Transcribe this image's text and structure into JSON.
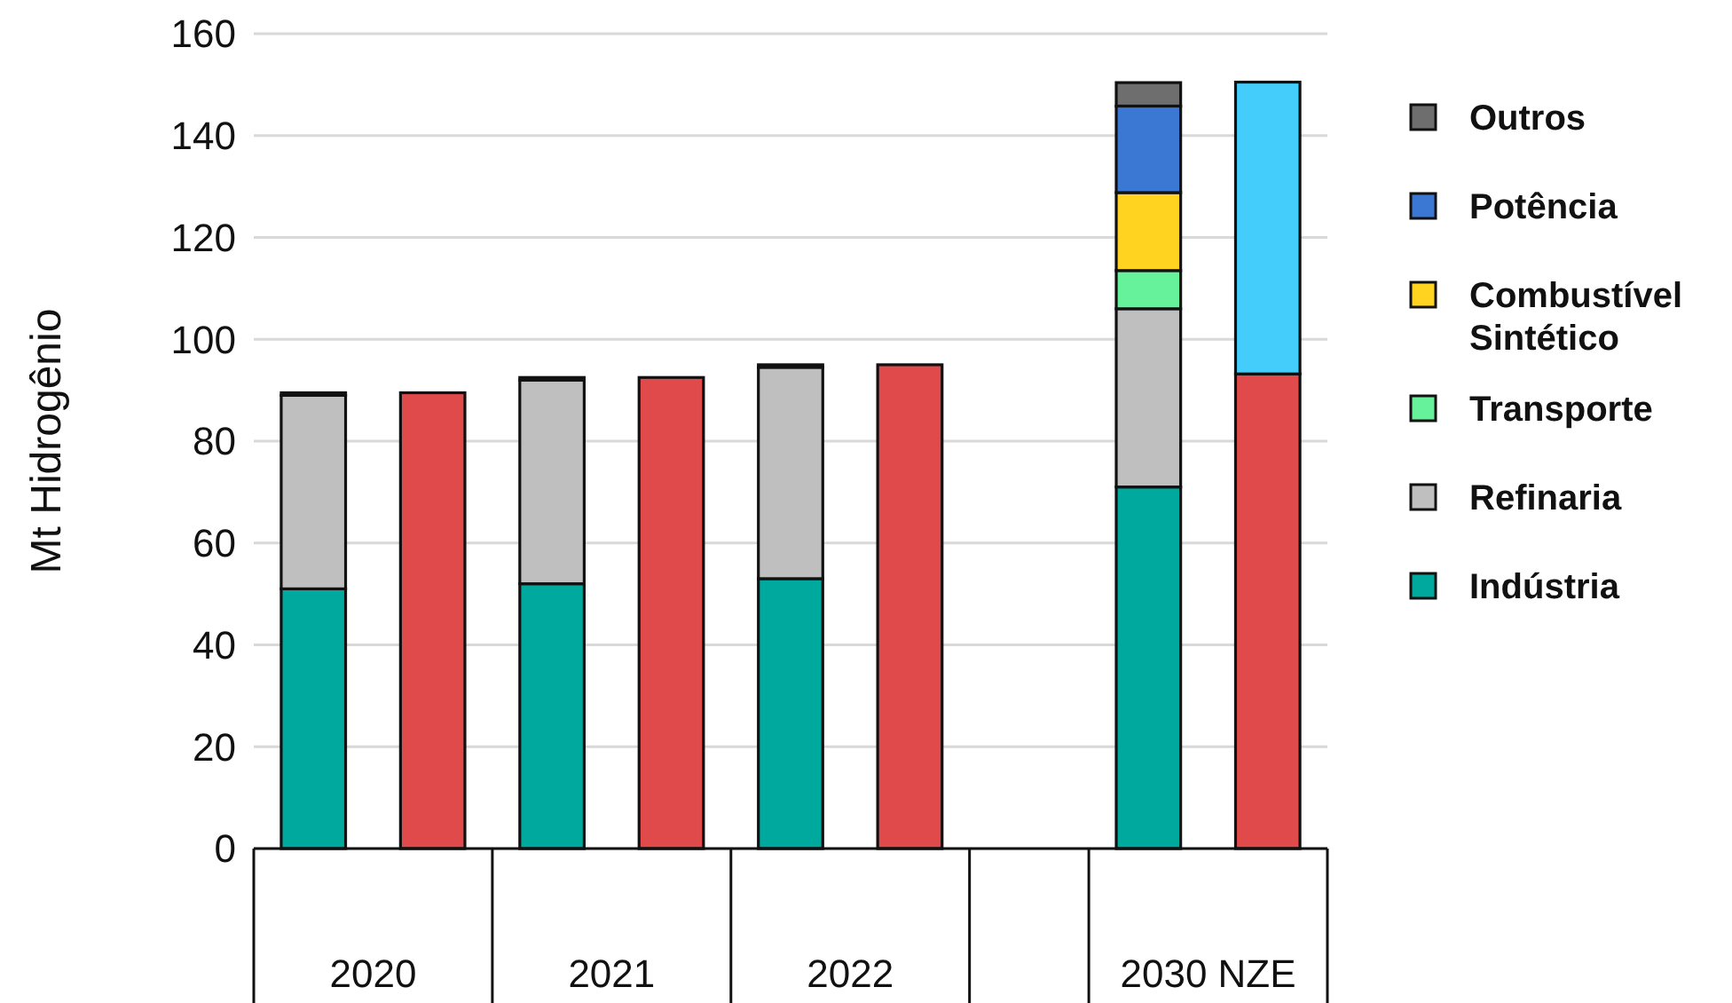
{
  "chart_data": {
    "type": "bar",
    "stacked": true,
    "ylabel": "Mt Hidrogênio",
    "categories": [
      "2020",
      null,
      "2021",
      null,
      "2022",
      null,
      null,
      "2030 NZE",
      null
    ],
    "ylim": [
      0,
      160
    ],
    "yticks": [
      0,
      20,
      40,
      60,
      80,
      100,
      120,
      140,
      160
    ],
    "grid": "y",
    "legend": "right",
    "series": [
      {
        "name": "Indústria",
        "color": "#00a99d",
        "values": [
          51,
          null,
          52,
          null,
          53,
          null,
          null,
          71,
          null
        ]
      },
      {
        "name": "Refinaria",
        "color": "#bfbfbf",
        "values": [
          38,
          null,
          40,
          null,
          41.5,
          null,
          null,
          35,
          null
        ]
      },
      {
        "name": "Transporte",
        "color": "#66f29a",
        "values": [
          null,
          null,
          null,
          null,
          null,
          null,
          null,
          7.5,
          null
        ]
      },
      {
        "name": "Combustível Sintético",
        "color": "#ffd320",
        "values": [
          null,
          null,
          null,
          null,
          null,
          null,
          null,
          15.3,
          null
        ]
      },
      {
        "name": "Potência",
        "color": "#3a78d4",
        "values": [
          null,
          null,
          null,
          null,
          null,
          null,
          null,
          17,
          null
        ]
      },
      {
        "name": "Outros",
        "color": "#6e6e6e",
        "values": [
          0.5,
          null,
          0.5,
          null,
          0.5,
          null,
          null,
          4.6,
          null
        ]
      },
      {
        "color": "#e04a4a",
        "values": [
          null,
          89.5,
          null,
          92.5,
          null,
          95,
          null,
          null,
          93.2
        ]
      },
      {
        "color": "#44cdfb",
        "values": [
          null,
          null,
          null,
          null,
          null,
          null,
          null,
          null,
          57.3
        ]
      }
    ]
  }
}
